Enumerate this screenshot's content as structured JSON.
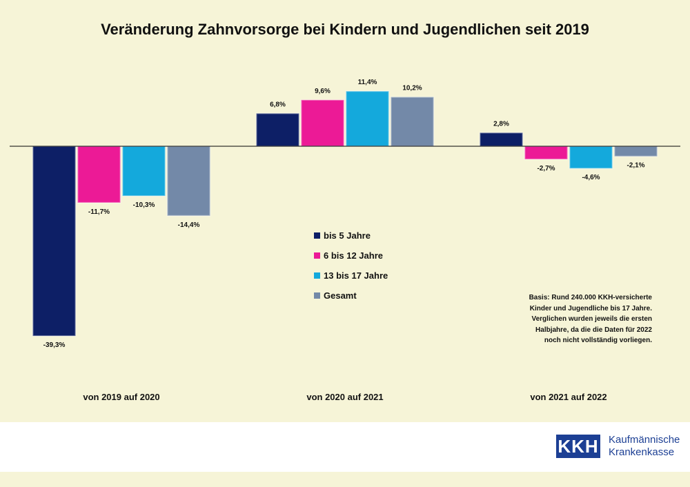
{
  "chart_data": {
    "type": "bar",
    "title": "Veränderung Zahnvorsorge bei Kindern und Jugendlichen seit 2019",
    "categories": [
      "von 2019 auf 2020",
      "von 2020 auf 2021",
      "von 2021 auf 2022"
    ],
    "series": [
      {
        "name": "bis 5 Jahre",
        "color": "#0d1f66",
        "values": [
          -39.3,
          6.8,
          2.8
        ],
        "labels": [
          "-39,3%",
          "6,8%",
          "2,8%"
        ]
      },
      {
        "name": "6 bis 12 Jahre",
        "color": "#ec1a96",
        "values": [
          -11.7,
          9.6,
          -2.7
        ],
        "labels": [
          "-11,7%",
          "9,6%",
          "-2,7%"
        ]
      },
      {
        "name": "13 bis 17 Jahre",
        "color": "#14a9dc",
        "values": [
          -10.3,
          11.4,
          -4.6
        ],
        "labels": [
          "-10,3%",
          "11,4%",
          "-4,6%"
        ]
      },
      {
        "name": "Gesamt",
        "color": "#7389a8",
        "values": [
          -14.4,
          10.2,
          -2.1
        ],
        "labels": [
          "-14,4%",
          "10,2%",
          "-2,1%"
        ]
      }
    ],
    "ylim": [
      -40,
      12
    ],
    "legend_position": "center",
    "grid": false
  },
  "note": [
    "Basis: Rund 240.000 KKH-versicherte",
    "Kinder und Jugendliche bis 17 Jahre.",
    "Verglichen wurden jeweils die ersten",
    "Halbjahre, da die die Daten für 2022",
    "noch nicht vollständig vorliegen."
  ],
  "logo": {
    "mark": "KKH",
    "line1": "Kaufmännische",
    "line2": "Krankenkasse",
    "color": "#1c3f94"
  }
}
